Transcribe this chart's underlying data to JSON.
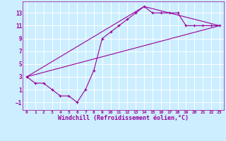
{
  "background_color": "#cceeff",
  "grid_color": "#ffffff",
  "line_color": "#990099",
  "marker": "+",
  "marker_size": 3,
  "line_width": 0.8,
  "xlabel": "Windchill (Refroidissement éolien,°C)",
  "xlabel_fontsize": 6,
  "ylabel_ticks": [
    -1,
    1,
    3,
    5,
    7,
    9,
    11,
    13
  ],
  "xlabel_ticks": [
    0,
    1,
    2,
    3,
    4,
    5,
    6,
    7,
    8,
    9,
    10,
    11,
    12,
    13,
    14,
    15,
    16,
    17,
    18,
    19,
    20,
    21,
    22,
    23
  ],
  "xlim": [
    -0.5,
    23.5
  ],
  "ylim": [
    -2.2,
    14.8
  ],
  "line1_x": [
    0,
    1,
    2,
    3,
    4,
    5,
    6,
    7,
    8,
    9,
    10,
    11,
    12,
    13,
    14,
    15,
    16,
    17,
    18,
    19,
    20,
    21,
    22,
    23
  ],
  "line1_y": [
    3,
    2,
    2,
    1,
    0,
    0,
    -1,
    1,
    4,
    9,
    10,
    11,
    12,
    13,
    14,
    13,
    13,
    13,
    13,
    11,
    11,
    11,
    11,
    11
  ],
  "line2_x": [
    0,
    23
  ],
  "line2_y": [
    3,
    11
  ],
  "line3_x": [
    0,
    14,
    23
  ],
  "line3_y": [
    3,
    14,
    11
  ]
}
